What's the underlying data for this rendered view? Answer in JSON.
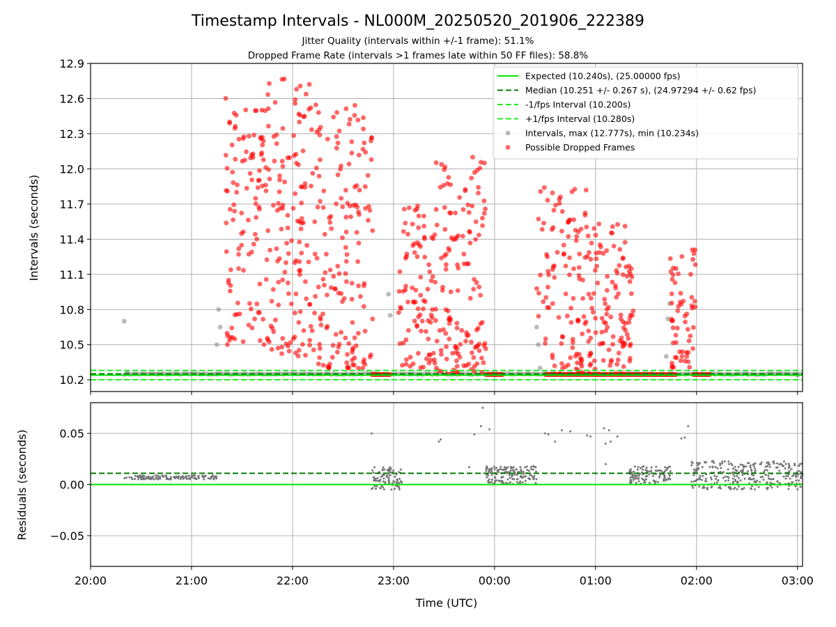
{
  "figure": {
    "title": "Timestamp Intervals - NL000M_20250520_201906_222389",
    "subtitle_1": "Jitter Quality (intervals within +/-1 frame): 51.1%",
    "subtitle_2": "Dropped Frame Rate (intervals >1 frames late within 50 FF files): 58.8%"
  },
  "colors": {
    "expected": "#00e600",
    "median": "#007a00",
    "fps_interval": "#22ee22",
    "intervals": "#8c8c8c",
    "dropped": "#ff0000",
    "grid": "#b0b0b0",
    "residuals": "#777777"
  },
  "chart_data": [
    {
      "type": "scatter",
      "panel": "intervals",
      "xlabel": "",
      "ylabel": "Intervals (seconds)",
      "xlim": [
        "20:00",
        "03:03"
      ],
      "ylim": [
        10.1,
        12.9
      ],
      "y_ticks": [
        "10.2",
        "10.5",
        "10.8",
        "11.1",
        "11.4",
        "11.7",
        "12.0",
        "12.3",
        "12.6",
        "12.9"
      ],
      "grid": true,
      "legend_position": "top-right",
      "reference_lines": [
        {
          "name": "Expected (10.240s), (25.00000 fps)",
          "y": 10.24,
          "style": "solid"
        },
        {
          "name": "Median (10.251 +/- 0.267 s), (24.97294 +/- 0.62 fps)",
          "y": 10.251,
          "style": "dashed"
        },
        {
          "name": "-1/fps Interval (10.200s)",
          "y": 10.2,
          "style": "dashed"
        },
        {
          "name": "+1/fps Interval (10.280s)",
          "y": 10.28,
          "style": "dashed"
        }
      ],
      "series": [
        {
          "name": "Intervals, max (12.777s), min (10.234s)",
          "points": [
            [
              "20:20",
              10.7
            ],
            [
              "20:22",
              10.26
            ],
            [
              "20:40",
              10.25
            ],
            [
              "21:00",
              10.25
            ],
            [
              "21:15",
              10.25
            ],
            [
              "21:15",
              10.5
            ],
            [
              "21:16",
              10.8
            ],
            [
              "21:17",
              10.65
            ],
            [
              "22:48",
              10.25
            ],
            [
              "22:57",
              10.93
            ],
            [
              "22:58",
              10.75
            ],
            [
              "23:10",
              10.25
            ],
            [
              "00:00",
              10.24
            ],
            [
              "00:20",
              10.25
            ],
            [
              "00:25",
              10.65
            ],
            [
              "00:26",
              10.5
            ],
            [
              "00:27",
              10.3
            ],
            [
              "01:40",
              10.25
            ],
            [
              "01:42",
              10.4
            ],
            [
              "01:43",
              10.72
            ],
            [
              "01:44",
              10.85
            ],
            [
              "02:30",
              10.25
            ],
            [
              "03:00",
              10.24
            ]
          ]
        },
        {
          "name": "Possible Dropped Frames",
          "clusters": [
            {
              "from": "21:20",
              "to": "21:45",
              "y_min": 10.5,
              "y_max": 12.62,
              "n": 110
            },
            {
              "from": "21:45",
              "to": "22:15",
              "y_min": 10.4,
              "y_max": 12.78,
              "n": 140
            },
            {
              "from": "22:15",
              "to": "22:48",
              "y_min": 10.3,
              "y_max": 12.6,
              "n": 150
            },
            {
              "from": "23:03",
              "to": "23:25",
              "y_min": 10.3,
              "y_max": 11.7,
              "n": 90
            },
            {
              "from": "23:25",
              "to": "23:55",
              "y_min": 10.25,
              "y_max": 12.1,
              "n": 140
            },
            {
              "from": "00:25",
              "to": "00:55",
              "y_min": 10.25,
              "y_max": 11.85,
              "n": 110
            },
            {
              "from": "00:55",
              "to": "01:23",
              "y_min": 10.25,
              "y_max": 11.55,
              "n": 120
            },
            {
              "from": "01:44",
              "to": "02:00",
              "y_min": 10.3,
              "y_max": 11.35,
              "n": 60
            }
          ],
          "baseline_runs": [
            {
              "from": "22:47",
              "to": "22:58",
              "y": 10.245
            },
            {
              "from": "23:55",
              "to": "00:05",
              "y": 10.245
            },
            {
              "from": "00:30",
              "to": "01:48",
              "y": 10.245
            },
            {
              "from": "01:58",
              "to": "02:08",
              "y": 10.245
            }
          ]
        }
      ]
    },
    {
      "type": "scatter",
      "panel": "residuals",
      "xlabel": "Time (UTC)",
      "ylabel": "Residuals (seconds)",
      "xlim": [
        "20:00",
        "03:03"
      ],
      "ylim": [
        -0.08,
        0.08
      ],
      "x_ticks": [
        "20:00",
        "21:00",
        "22:00",
        "23:00",
        "00:00",
        "01:00",
        "02:00",
        "03:00"
      ],
      "y_ticks": [
        "−0.05",
        "0.00",
        "0.05"
      ],
      "grid": true,
      "reference_lines": [
        {
          "y": 0.0,
          "style": "solid"
        },
        {
          "y": 0.011,
          "style": "dashed"
        }
      ],
      "clusters": [
        {
          "from": "20:20",
          "to": "21:15",
          "y_min": 0.005,
          "y_max": 0.009,
          "n": 130
        },
        {
          "from": "22:47",
          "to": "23:05",
          "y_min": -0.005,
          "y_max": 0.017,
          "n": 90
        },
        {
          "from": "23:55",
          "to": "00:25",
          "y_min": 0.0,
          "y_max": 0.018,
          "n": 150
        },
        {
          "from": "01:20",
          "to": "01:45",
          "y_min": 0.0,
          "y_max": 0.018,
          "n": 110
        },
        {
          "from": "01:57",
          "to": "03:03",
          "y_min": -0.005,
          "y_max": 0.023,
          "n": 300
        }
      ],
      "points": [
        [
          "22:47",
          0.05
        ],
        [
          "23:27",
          0.042
        ],
        [
          "23:28",
          0.044
        ],
        [
          "23:45",
          0.017
        ],
        [
          "23:48",
          0.049
        ],
        [
          "23:52",
          0.057
        ],
        [
          "23:53",
          0.075
        ],
        [
          "23:57",
          0.054
        ],
        [
          "00:14",
          0.012
        ],
        [
          "00:30",
          0.05
        ],
        [
          "00:32",
          0.049
        ],
        [
          "00:36",
          0.042
        ],
        [
          "00:40",
          0.053
        ],
        [
          "00:45",
          0.052
        ],
        [
          "00:55",
          0.048
        ],
        [
          "00:57",
          0.047
        ],
        [
          "01:05",
          0.055
        ],
        [
          "01:06",
          0.04
        ],
        [
          "01:08",
          0.053
        ],
        [
          "01:09",
          0.042
        ],
        [
          "01:13",
          0.047
        ],
        [
          "01:06",
          0.02
        ],
        [
          "01:51",
          0.045
        ],
        [
          "01:53",
          0.046
        ],
        [
          "01:55",
          0.057
        ]
      ]
    }
  ],
  "legend": [
    {
      "label": "Expected (10.240s), (25.00000 fps)",
      "kind": "solid"
    },
    {
      "label": "Median (10.251 +/- 0.267 s), (24.97294 +/- 0.62 fps)",
      "kind": "dashed-dark"
    },
    {
      "label": "-1/fps Interval (10.200s)",
      "kind": "dashed-bright"
    },
    {
      "label": "+1/fps Interval (10.280s)",
      "kind": "dashed-bright"
    },
    {
      "label": "Intervals, max (12.777s), min (10.234s)",
      "kind": "grey-dot"
    },
    {
      "label": "Possible Dropped Frames",
      "kind": "red-dot"
    }
  ]
}
